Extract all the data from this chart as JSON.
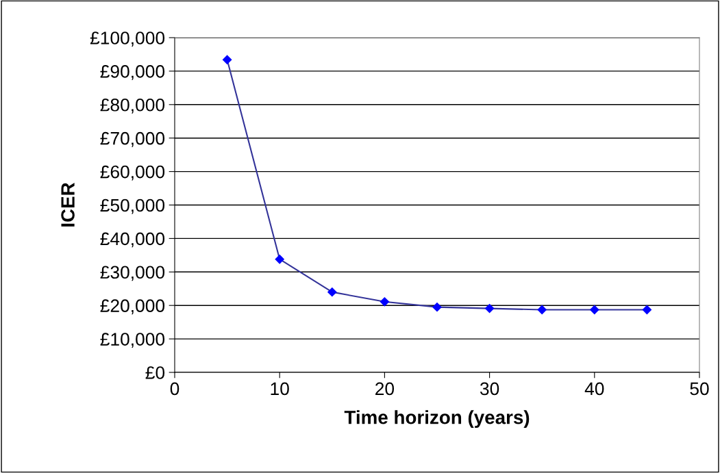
{
  "chart_data": {
    "type": "line",
    "xlabel": "Time horizon (years)",
    "ylabel": "ICER",
    "x": [
      5,
      10,
      15,
      20,
      25,
      30,
      35,
      40,
      45
    ],
    "series": [
      {
        "color": "#333399",
        "colors": [
          "#0000ff",
          "#0000ff",
          "#0000ff",
          "#0000ff",
          "#0000ff",
          "#0000ff",
          "#0000ff",
          "#0000ff",
          "#0000ff"
        ],
        "values": [
          93400,
          33800,
          24000,
          21100,
          19500,
          19100,
          18700,
          18700,
          18700
        ]
      }
    ],
    "marker": "diamond",
    "line_style": "solid",
    "grid": "y",
    "xlim": [
      0,
      50
    ],
    "xticks": [
      0,
      10,
      20,
      30,
      40,
      50
    ],
    "ylim": [
      0,
      100000
    ],
    "yticks": [
      {
        "value": 0,
        "label": "£0"
      },
      {
        "value": 10000,
        "label": "£10,000"
      },
      {
        "value": 20000,
        "label": "£20,000"
      },
      {
        "value": 30000,
        "label": "£30,000"
      },
      {
        "value": 40000,
        "label": "£40,000"
      },
      {
        "value": 50000,
        "label": "£50,000"
      },
      {
        "value": 60000,
        "label": "£60,000"
      },
      {
        "value": 70000,
        "label": "£70,000"
      },
      {
        "value": 80000,
        "label": "£80,000"
      },
      {
        "value": 90000,
        "label": "£90,000"
      },
      {
        "value": 100000,
        "label": "£100,000"
      }
    ]
  }
}
